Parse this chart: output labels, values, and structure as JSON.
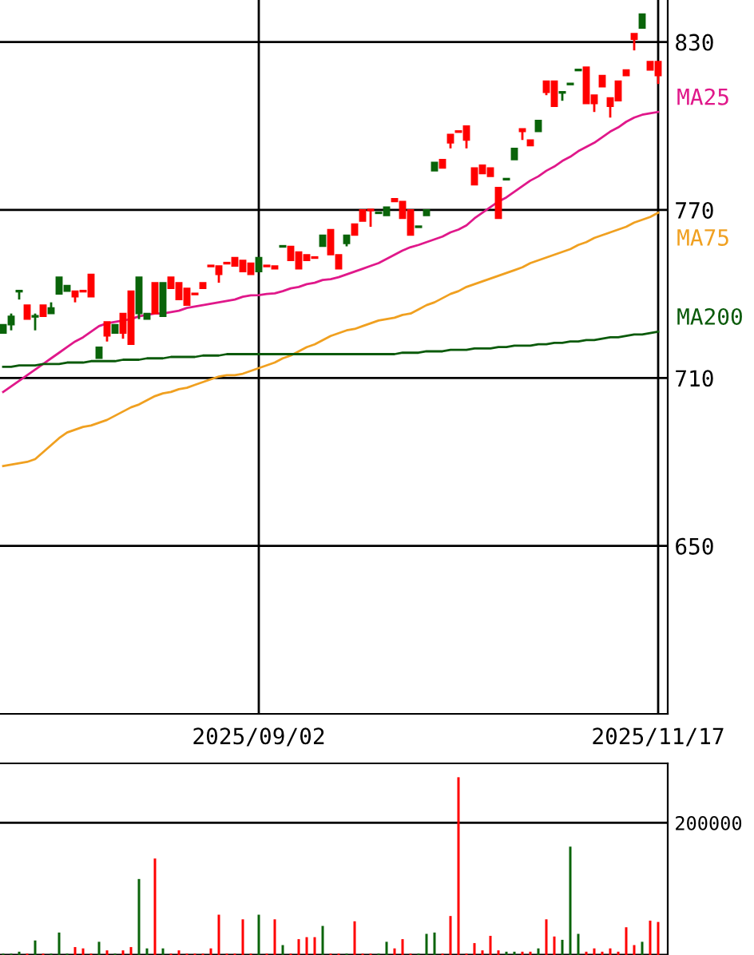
{
  "chart_data": [
    {
      "type": "candlestick",
      "categories": [
        null,
        null,
        null,
        null,
        null,
        null,
        null,
        null,
        null,
        null,
        null,
        null,
        null,
        null,
        null,
        null,
        null,
        null,
        null,
        null,
        null,
        null,
        null,
        null,
        null,
        null,
        null,
        null,
        null,
        null,
        null,
        null,
        "2025/09/02",
        null,
        null,
        null,
        null,
        null,
        null,
        null,
        null,
        null,
        null,
        null,
        null,
        null,
        null,
        null,
        null,
        null,
        null,
        null,
        null,
        null,
        null,
        null,
        null,
        null,
        null,
        null,
        null,
        null,
        null,
        null,
        null,
        null,
        null,
        null,
        null,
        null,
        null,
        null,
        null,
        null,
        null,
        null,
        null,
        null,
        null,
        null,
        null,
        null,
        "2025/11/17"
      ],
      "ohlc": [
        [
          729,
          729,
          726,
          726
        ],
        [
          732,
          733,
          727,
          729
        ],
        [
          741,
          741,
          738,
          741
        ],
        [
          731,
          736,
          731,
          736
        ],
        [
          732,
          733,
          727,
          732
        ],
        [
          732,
          736,
          732,
          736
        ],
        [
          735,
          737,
          733,
          733
        ],
        [
          746,
          746,
          740,
          740
        ],
        [
          743,
          743,
          741,
          741
        ],
        [
          739,
          741,
          737,
          741
        ],
        [
          741,
          741,
          741,
          741
        ],
        [
          739,
          747,
          739,
          747
        ],
        [
          721,
          721,
          717,
          717
        ],
        [
          725,
          730,
          723,
          730
        ],
        [
          729,
          729,
          726,
          726
        ],
        [
          726,
          733,
          724,
          733
        ],
        [
          722,
          741,
          722,
          741
        ],
        [
          746,
          746,
          731,
          733
        ],
        [
          733,
          733,
          731,
          731
        ],
        [
          733,
          744,
          733,
          744
        ],
        [
          744,
          744,
          732,
          732
        ],
        [
          742,
          746,
          742,
          746
        ],
        [
          738,
          744,
          738,
          744
        ],
        [
          736,
          742,
          736,
          742
        ],
        [
          740,
          740,
          740,
          740
        ],
        [
          742,
          744,
          742,
          744
        ],
        [
          750,
          750,
          750,
          750
        ],
        [
          747,
          750,
          744,
          750
        ],
        [
          751,
          751,
          751,
          751
        ],
        [
          750,
          753,
          750,
          753
        ],
        [
          748,
          752,
          748,
          752
        ],
        [
          747,
          751,
          747,
          751
        ],
        [
          753,
          753,
          748,
          748
        ],
        [
          750,
          750,
          750,
          750
        ],
        [
          749,
          750,
          749,
          750
        ],
        [
          757,
          757,
          757,
          757
        ],
        [
          752,
          757,
          752,
          757
        ],
        [
          749,
          755,
          749,
          755
        ],
        [
          752,
          754,
          752,
          754
        ],
        [
          753,
          753,
          753,
          753
        ],
        [
          761,
          761,
          757,
          757
        ],
        [
          754,
          763,
          754,
          763
        ],
        [
          749,
          754,
          749,
          754
        ],
        [
          761,
          761,
          757,
          758
        ],
        [
          761,
          765,
          761,
          765
        ],
        [
          766,
          770,
          766,
          770
        ],
        [
          770,
          770,
          764,
          770
        ],
        [
          769,
          769,
          769,
          769
        ],
        [
          771,
          771,
          768,
          768
        ],
        [
          773,
          774,
          773,
          774
        ],
        [
          767,
          773,
          767,
          773
        ],
        [
          761,
          770,
          761,
          770
        ],
        [
          764,
          764,
          764,
          764
        ],
        [
          770,
          770,
          768,
          768
        ],
        [
          787,
          787,
          784,
          784
        ],
        [
          785,
          788,
          785,
          788
        ],
        [
          794,
          797,
          792,
          797
        ],
        [
          798,
          798,
          798,
          798
        ],
        [
          795,
          800,
          792,
          800
        ],
        [
          779,
          785,
          779,
          785
        ],
        [
          783,
          786,
          783,
          786
        ],
        [
          782,
          785,
          782,
          785
        ],
        [
          767,
          778,
          767,
          778
        ],
        [
          781,
          781,
          781,
          781
        ],
        [
          792,
          792,
          788,
          788
        ],
        [
          798,
          799,
          795,
          799
        ],
        [
          793,
          795,
          793,
          795
        ],
        [
          802,
          802,
          798,
          798
        ],
        [
          812,
          816,
          811,
          816
        ],
        [
          807,
          816,
          807,
          816
        ],
        [
          812,
          812,
          809,
          812
        ],
        [
          815,
          815,
          815,
          815
        ],
        [
          820,
          820,
          820,
          820
        ],
        [
          808,
          821,
          808,
          821
        ],
        [
          808,
          811,
          805,
          811
        ],
        [
          814,
          818,
          814,
          818
        ],
        [
          807,
          810,
          803,
          810
        ],
        [
          809,
          816,
          809,
          816
        ],
        [
          818,
          820,
          818,
          820
        ],
        [
          831,
          833,
          827,
          833
        ],
        [
          840,
          840,
          835,
          835
        ],
        [
          820,
          823,
          820,
          823
        ],
        [
          818,
          823,
          815,
          823
        ]
      ],
      "colors": [
        "#0a640a",
        "#0a640a",
        "#0a640a",
        "#ff0000",
        "#0a640a",
        "#ff0000",
        "#0a640a",
        "#0a640a",
        "#0a640a",
        "#ff0000",
        "#ff0000",
        "#ff0000",
        "#0a640a",
        "#ff0000",
        "#0a640a",
        "#ff0000",
        "#ff0000",
        "#0a640a",
        "#0a640a",
        "#ff0000",
        "#0a640a",
        "#ff0000",
        "#ff0000",
        "#ff0000",
        "#ff0000",
        "#ff0000",
        "#ff0000",
        "#ff0000",
        "#ff0000",
        "#ff0000",
        "#ff0000",
        "#ff0000",
        "#0a640a",
        "#ff0000",
        "#ff0000",
        "#0a640a",
        "#ff0000",
        "#ff0000",
        "#ff0000",
        "#ff0000",
        "#0a640a",
        "#ff0000",
        "#ff0000",
        "#0a640a",
        "#ff0000",
        "#ff0000",
        "#ff0000",
        "#0a640a",
        "#0a640a",
        "#ff0000",
        "#ff0000",
        "#ff0000",
        "#0a640a",
        "#0a640a",
        "#0a640a",
        "#ff0000",
        "#ff0000",
        "#ff0000",
        "#ff0000",
        "#ff0000",
        "#ff0000",
        "#ff0000",
        "#ff0000",
        "#0a640a",
        "#0a640a",
        "#ff0000",
        "#ff0000",
        "#0a640a",
        "#ff0000",
        "#ff0000",
        "#0a640a",
        "#0a640a",
        "#0a640a",
        "#ff0000",
        "#ff0000",
        "#ff0000",
        "#ff0000",
        "#ff0000",
        "#ff0000",
        "#ff0000",
        "#0a640a",
        "#ff0000",
        "#ff0000"
      ],
      "series": [
        {
          "name": "MA25",
          "type": "line",
          "color": "#e0188a",
          "values": [
            705,
            707,
            709,
            711,
            713,
            715,
            717,
            719,
            721,
            723,
            724.5,
            726.5,
            728.5,
            729.5,
            730,
            730.5,
            731,
            732,
            732.5,
            733,
            733,
            733.5,
            734,
            735,
            735.5,
            736,
            736.5,
            737,
            737.5,
            738,
            739,
            739.5,
            739.6,
            740,
            740.2,
            741,
            742,
            742.5,
            743.5,
            744,
            745,
            745.3,
            746,
            747,
            748,
            749,
            750,
            751,
            752.5,
            754,
            755.5,
            756.7,
            757.5,
            758.5,
            759.5,
            760.5,
            762,
            763,
            764.5,
            767,
            769,
            771,
            773,
            774.5,
            776.5,
            778.5,
            780.5,
            782,
            784,
            785.5,
            787.5,
            789,
            791,
            792.5,
            794,
            796,
            798,
            799.5,
            801.5,
            803,
            804,
            804.5,
            805
          ]
        },
        {
          "name": "MA75",
          "type": "line",
          "color": "#f0a020",
          "values": [
            678.5,
            679,
            679.5,
            680,
            681,
            683.5,
            686,
            688.5,
            690.5,
            691.5,
            692.5,
            693,
            694,
            695,
            696.5,
            698,
            699.5,
            700.5,
            702,
            703.5,
            704.5,
            705,
            706,
            706.5,
            707.5,
            708.5,
            709.5,
            710.5,
            711,
            711,
            711.5,
            712.5,
            713.5,
            714.5,
            715.5,
            717,
            718,
            719.5,
            721,
            722,
            723.5,
            725,
            726,
            727,
            727.5,
            728.5,
            729.5,
            730.5,
            731,
            731.5,
            732.5,
            733,
            734.5,
            736,
            737,
            738.5,
            740,
            741,
            742.5,
            743.5,
            744.5,
            745.5,
            746.5,
            747.5,
            748.5,
            749.5,
            751,
            752,
            753,
            754,
            755,
            756,
            757.5,
            758.5,
            760,
            761,
            762,
            763,
            764,
            765.5,
            766.5,
            767.5,
            769
          ]
        },
        {
          "name": "MA200",
          "type": "line",
          "color": "#0a5a0a",
          "values": [
            714,
            714,
            714.5,
            714.5,
            714.5,
            715,
            715,
            715,
            715.5,
            715.5,
            715.5,
            716,
            716,
            716,
            716,
            716.5,
            716.5,
            716.5,
            717,
            717,
            717,
            717.5,
            717.5,
            717.5,
            717.5,
            718,
            718,
            718,
            718.5,
            718.5,
            718.5,
            718.5,
            718.5,
            718.5,
            718.5,
            718.5,
            718.5,
            718.5,
            718.5,
            718.5,
            718.5,
            718.5,
            718.5,
            718.5,
            718.5,
            718.5,
            718.5,
            718.5,
            718.5,
            718.5,
            719,
            719,
            719,
            719.5,
            719.5,
            719.5,
            720,
            720,
            720,
            720.5,
            720.5,
            720.5,
            721,
            721,
            721.5,
            721.5,
            721.5,
            722,
            722,
            722.5,
            722.5,
            723,
            723,
            723.5,
            723.5,
            724,
            724.5,
            724.5,
            725,
            725.5,
            725.5,
            726,
            726.5
          ]
        }
      ],
      "ylim": [
        590,
        845
      ],
      "yticks": [
        650,
        710,
        770,
        830
      ],
      "grid": true,
      "legend": false
    },
    {
      "type": "bar",
      "categories": [
        null,
        null,
        null,
        null,
        null,
        null,
        null,
        null,
        null,
        null,
        null,
        null,
        null,
        null,
        null,
        null,
        null,
        null,
        null,
        null,
        null,
        null,
        null,
        null,
        null,
        null,
        null,
        null,
        null,
        null,
        null,
        null,
        null,
        null,
        null,
        null,
        null,
        null,
        null,
        null,
        null,
        null,
        null,
        null,
        null,
        null,
        null,
        null,
        null,
        null,
        null,
        null,
        null,
        null,
        null,
        null,
        null,
        null,
        null,
        null,
        null,
        null,
        null,
        null,
        null,
        null,
        null,
        null,
        null,
        null,
        null,
        null,
        null,
        null,
        null,
        null,
        null,
        null,
        null,
        null,
        null,
        null,
        null
      ],
      "values": [
        2000,
        2000,
        5000,
        2000,
        22000,
        2000,
        2000,
        34000,
        2000,
        12000,
        10000,
        2000,
        20000,
        7000,
        2000,
        7000,
        12000,
        115000,
        10000,
        146000,
        10000,
        2000,
        7000,
        2000,
        2000,
        2000,
        10000,
        61000,
        2000,
        2000,
        54000,
        2000,
        61000,
        2000,
        54000,
        15000,
        2000,
        24000,
        27000,
        27000,
        44000,
        2000,
        2000,
        2000,
        51000,
        2000,
        2000,
        2000,
        20000,
        10000,
        24000,
        2000,
        2000,
        32000,
        34000,
        2000,
        59000,
        269000,
        2000,
        18000,
        7000,
        29000,
        7000,
        5000,
        5000,
        5000,
        5000,
        10000,
        54000,
        28000,
        23000,
        164000,
        32000,
        5000,
        10000,
        5000,
        10000,
        5000,
        42000,
        15000,
        20000,
        52000,
        50000
      ],
      "colors": [
        "#0a640a",
        "#0a640a",
        "#0a640a",
        "#ff0000",
        "#0a640a",
        "#ff0000",
        "#0a640a",
        "#0a640a",
        "#0a640a",
        "#ff0000",
        "#ff0000",
        "#ff0000",
        "#0a640a",
        "#ff0000",
        "#0a640a",
        "#ff0000",
        "#ff0000",
        "#0a640a",
        "#0a640a",
        "#ff0000",
        "#0a640a",
        "#ff0000",
        "#ff0000",
        "#ff0000",
        "#ff0000",
        "#ff0000",
        "#ff0000",
        "#ff0000",
        "#ff0000",
        "#ff0000",
        "#ff0000",
        "#ff0000",
        "#0a640a",
        "#ff0000",
        "#ff0000",
        "#0a640a",
        "#ff0000",
        "#ff0000",
        "#ff0000",
        "#ff0000",
        "#0a640a",
        "#ff0000",
        "#ff0000",
        "#0a640a",
        "#ff0000",
        "#ff0000",
        "#ff0000",
        "#0a640a",
        "#0a640a",
        "#ff0000",
        "#ff0000",
        "#ff0000",
        "#0a640a",
        "#0a640a",
        "#0a640a",
        "#ff0000",
        "#ff0000",
        "#ff0000",
        "#ff0000",
        "#ff0000",
        "#ff0000",
        "#ff0000",
        "#ff0000",
        "#0a640a",
        "#0a640a",
        "#ff0000",
        "#ff0000",
        "#0a640a",
        "#ff0000",
        "#ff0000",
        "#0a640a",
        "#0a640a",
        "#0a640a",
        "#ff0000",
        "#ff0000",
        "#ff0000",
        "#ff0000",
        "#ff0000",
        "#ff0000",
        "#ff0000",
        "#0a640a",
        "#ff0000",
        "#ff0000"
      ],
      "ylim": [
        0,
        290000
      ],
      "yticks": [
        {
          "value": 0,
          "label": null
        },
        200000
      ],
      "grid": "y",
      "tick_labels": "y"
    }
  ]
}
